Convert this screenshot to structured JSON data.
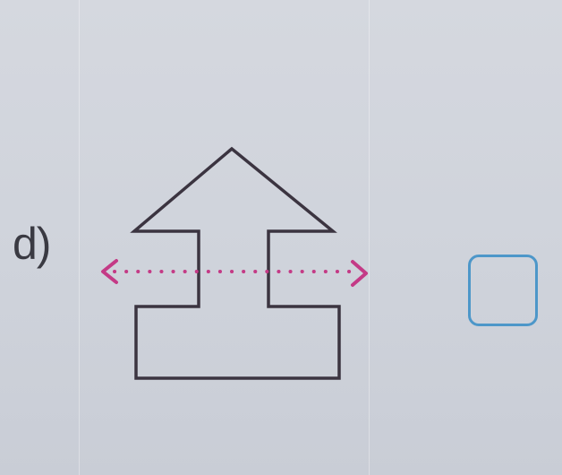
{
  "exercise": {
    "label": "d)"
  },
  "colors": {
    "shape_stroke": "#3b3440",
    "symmetry_line": "#c43a86",
    "answer_box": "#4d97c9",
    "label_text": "#3a3a42"
  },
  "icons": {
    "shape": "arrow-house-outline",
    "symmetry_line": "dotted-double-arrow"
  }
}
